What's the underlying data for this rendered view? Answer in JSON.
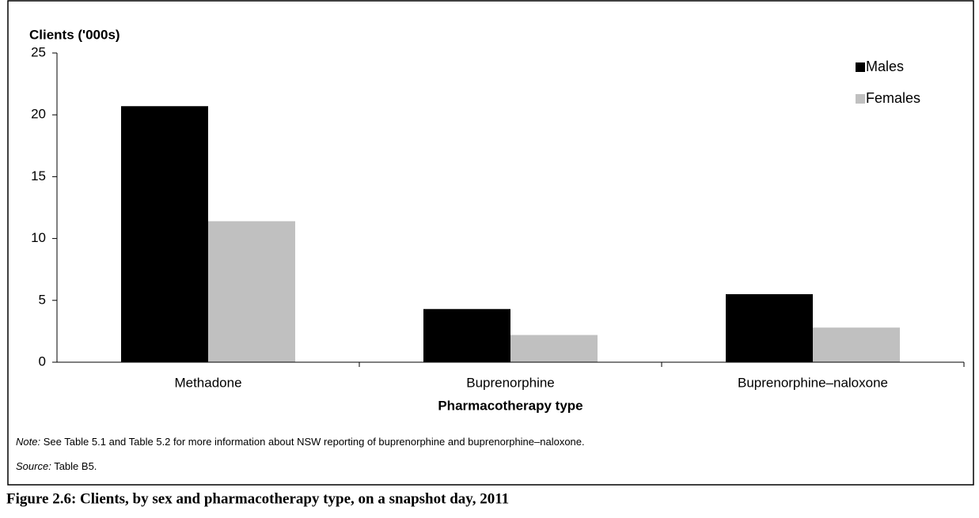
{
  "chart_data": {
    "type": "bar",
    "title": "Figure 2.6: Clients, by sex and pharmacotherapy type, on a snapshot day, 2011",
    "y_label": "Clients ('000s)",
    "x_label": "Pharmacotherapy type",
    "categories": [
      "Methadone",
      "Buprenorphine",
      "Buprenorphine–naloxone"
    ],
    "series": [
      {
        "name": "Males",
        "color": "#000000",
        "values": [
          20.7,
          4.3,
          5.5
        ]
      },
      {
        "name": "Females",
        "color": "#c0c0c0",
        "values": [
          11.4,
          2.2,
          2.8
        ]
      }
    ],
    "ylim": [
      0,
      25
    ],
    "yticks": [
      0,
      5,
      10,
      15,
      20,
      25
    ],
    "grid": false,
    "legend": "top-right",
    "note": {
      "label": "Note:",
      "text": "See Table 5.1 and Table 5.2 for more information about NSW reporting of buprenorphine and buprenorphine–naloxone."
    },
    "source": {
      "label": "Source:",
      "text": "Table B5."
    }
  }
}
